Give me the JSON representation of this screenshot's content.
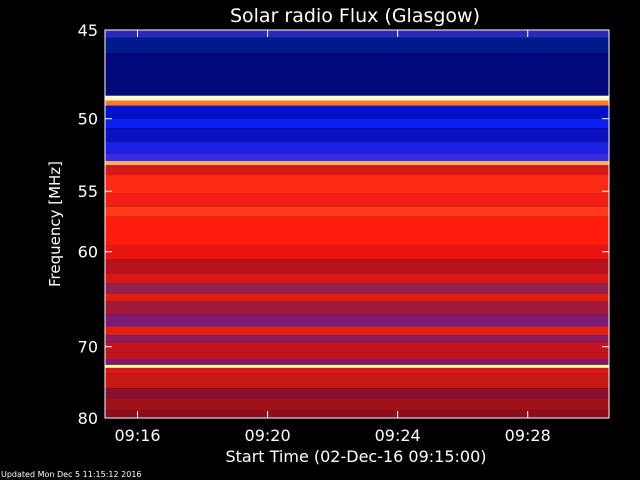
{
  "chart_data": {
    "type": "heatmap",
    "title": "Solar radio Flux (Glasgow)",
    "xlabel": "Start Time (02-Dec-16 09:15:00)",
    "ylabel": "Frequency [MHz]",
    "footer": "Updated Mon Dec  5 11:15:12 2016",
    "x_range_minutes": [
      0,
      15.5
    ],
    "x_ticks": [
      {
        "label": "09:16",
        "value": 1
      },
      {
        "label": "09:20",
        "value": 5
      },
      {
        "label": "09:24",
        "value": 9
      },
      {
        "label": "09:28",
        "value": 13
      }
    ],
    "y_range_mhz": [
      45,
      80
    ],
    "y_scale": "reciprocal",
    "y_ticks": [
      {
        "label": "45",
        "value": 45
      },
      {
        "label": "50",
        "value": 50
      },
      {
        "label": "55",
        "value": 55
      },
      {
        "label": "60",
        "value": 60
      },
      {
        "label": "70",
        "value": 70
      },
      {
        "label": "80",
        "value": 80
      }
    ],
    "bands": [
      {
        "from": 45.0,
        "to": 45.4,
        "color": "#2a2ab8"
      },
      {
        "from": 45.4,
        "to": 46.2,
        "color": "#001a8c"
      },
      {
        "from": 46.2,
        "to": 48.6,
        "color": "#00087a"
      },
      {
        "from": 48.6,
        "to": 48.9,
        "color": "#ffffc8"
      },
      {
        "from": 48.9,
        "to": 49.2,
        "color": "#ff7a30"
      },
      {
        "from": 49.2,
        "to": 50.0,
        "color": "#0010c8"
      },
      {
        "from": 50.0,
        "to": 50.6,
        "color": "#0c1ef0"
      },
      {
        "from": 50.6,
        "to": 51.5,
        "color": "#0a10c0"
      },
      {
        "from": 51.5,
        "to": 52.3,
        "color": "#1c20e0"
      },
      {
        "from": 52.3,
        "to": 52.8,
        "color": "#3a2ae0"
      },
      {
        "from": 52.8,
        "to": 53.1,
        "color": "#ffb060"
      },
      {
        "from": 53.1,
        "to": 53.8,
        "color": "#d81818"
      },
      {
        "from": 53.8,
        "to": 55.2,
        "color": "#ff2a14"
      },
      {
        "from": 55.2,
        "to": 56.2,
        "color": "#f01e14"
      },
      {
        "from": 56.2,
        "to": 57.0,
        "color": "#ff3a1a"
      },
      {
        "from": 57.0,
        "to": 59.4,
        "color": "#ff1c0c"
      },
      {
        "from": 59.4,
        "to": 60.7,
        "color": "#e81410"
      },
      {
        "from": 60.7,
        "to": 62.0,
        "color": "#b8101c"
      },
      {
        "from": 62.0,
        "to": 63.0,
        "color": "#d81814"
      },
      {
        "from": 63.0,
        "to": 64.0,
        "color": "#902050"
      },
      {
        "from": 64.0,
        "to": 64.8,
        "color": "#e01c10"
      },
      {
        "from": 64.8,
        "to": 66.3,
        "color": "#a01838"
      },
      {
        "from": 66.3,
        "to": 67.6,
        "color": "#7c1a78"
      },
      {
        "from": 67.6,
        "to": 68.6,
        "color": "#e02012"
      },
      {
        "from": 68.6,
        "to": 69.4,
        "color": "#8a1c60"
      },
      {
        "from": 69.4,
        "to": 71.6,
        "color": "#c01420"
      },
      {
        "from": 71.6,
        "to": 72.3,
        "color": "#7a1a70"
      },
      {
        "from": 72.3,
        "to": 72.7,
        "color": "#ffff90"
      },
      {
        "from": 72.7,
        "to": 73.5,
        "color": "#d81818"
      },
      {
        "from": 73.5,
        "to": 75.5,
        "color": "#c81814"
      },
      {
        "from": 75.5,
        "to": 77.0,
        "color": "#8a1030"
      },
      {
        "from": 77.0,
        "to": 78.8,
        "color": "#a01018"
      },
      {
        "from": 78.8,
        "to": 80.0,
        "color": "#8c0c20"
      }
    ]
  }
}
